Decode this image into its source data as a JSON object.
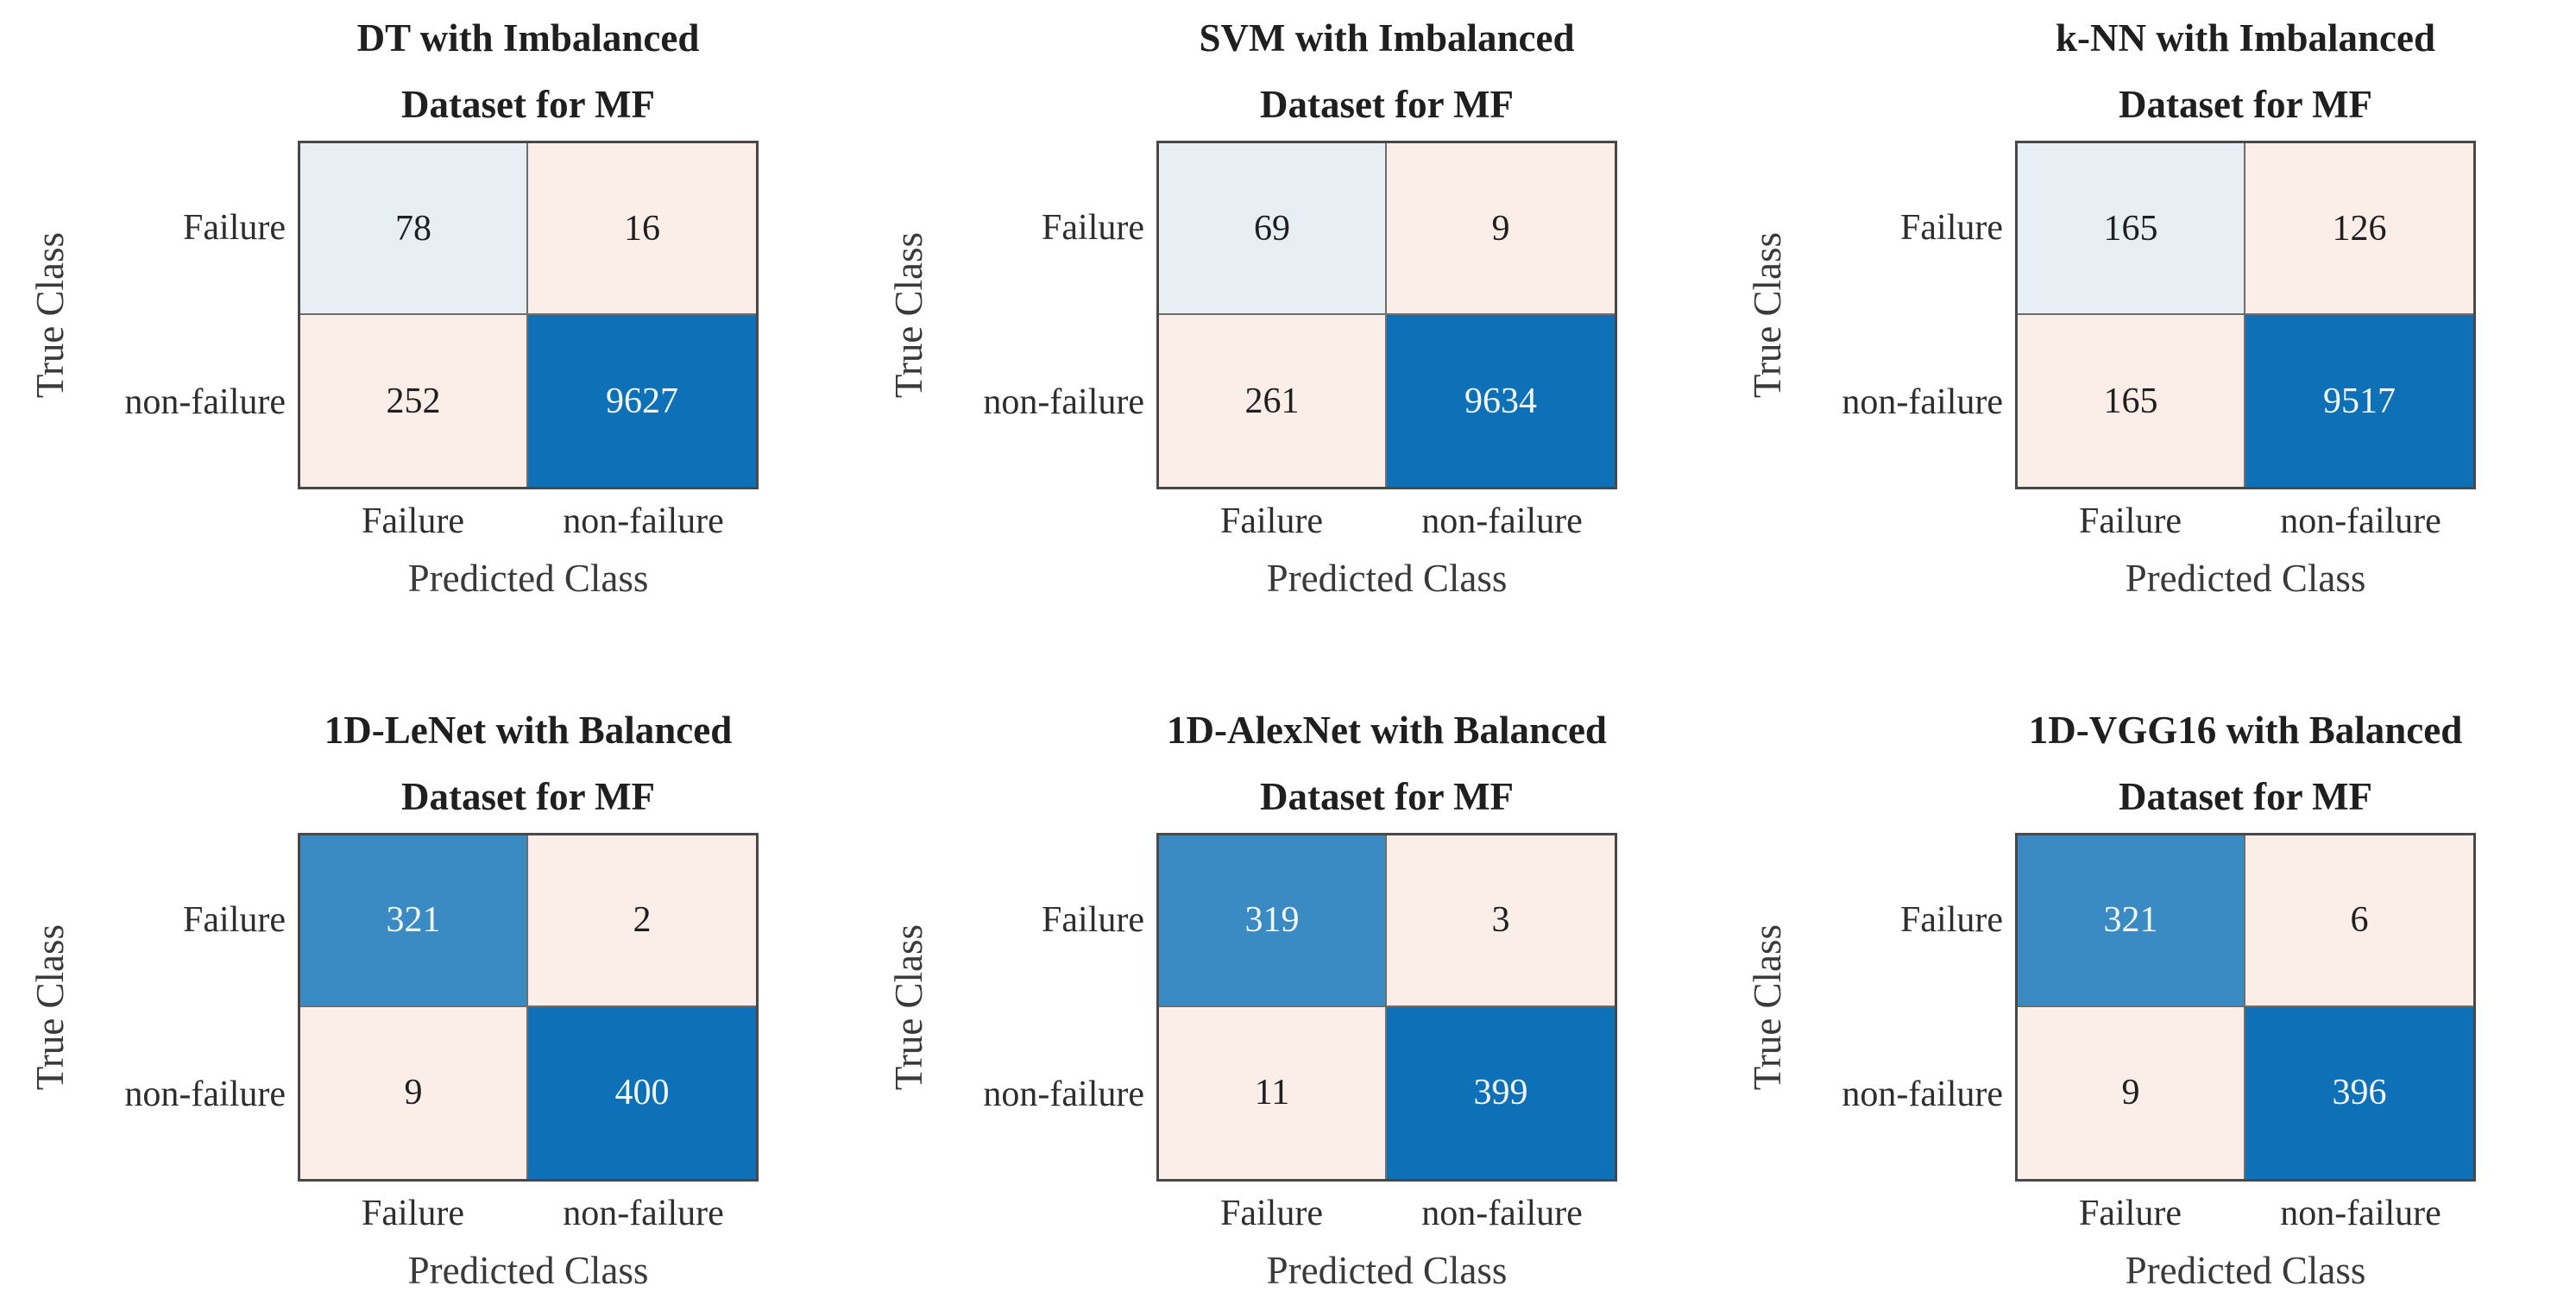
{
  "colors": {
    "cell_light_blue": "#e7eff5",
    "cell_cream": "#fbeee9",
    "cell_mid_blue": "#3a8ac4",
    "cell_dark_blue": "#0e71b8",
    "grid_line": "#6e6e6e",
    "matrix_border": "#484848",
    "text_dark": "#1f1f1f",
    "text_light": "#f2f6fa"
  },
  "chart_data": [
    {
      "type": "heatmap",
      "title": "DT with Imbalanced Dataset for MF",
      "title_lines": [
        "DT with Imbalanced",
        "Dataset for MF"
      ],
      "xlabel": "Predicted Class",
      "ylabel": "True Class",
      "x_categories": [
        "Failure",
        "non-failure"
      ],
      "y_categories": [
        "Failure",
        "non-failure"
      ],
      "values": [
        [
          78,
          16
        ],
        [
          252,
          9627
        ]
      ]
    },
    {
      "type": "heatmap",
      "title": "SVM with Imbalanced Dataset for MF",
      "title_lines": [
        "SVM with Imbalanced",
        "Dataset for MF"
      ],
      "xlabel": "Predicted Class",
      "ylabel": "True Class",
      "x_categories": [
        "Failure",
        "non-failure"
      ],
      "y_categories": [
        "Failure",
        "non-failure"
      ],
      "values": [
        [
          69,
          9
        ],
        [
          261,
          9634
        ]
      ]
    },
    {
      "type": "heatmap",
      "title": "k-NN with Imbalanced Dataset for MF",
      "title_lines": [
        "k-NN with Imbalanced",
        "Dataset for MF"
      ],
      "xlabel": "Predicted Class",
      "ylabel": "True Class",
      "x_categories": [
        "Failure",
        "non-failure"
      ],
      "y_categories": [
        "Failure",
        "non-failure"
      ],
      "values": [
        [
          165,
          126
        ],
        [
          165,
          9517
        ]
      ]
    },
    {
      "type": "heatmap",
      "title": "1D-LeNet with Balanced Dataset for MF",
      "title_lines": [
        "1D-LeNet with Balanced",
        "Dataset for MF"
      ],
      "xlabel": "Predicted Class",
      "ylabel": "True Class",
      "x_categories": [
        "Failure",
        "non-failure"
      ],
      "y_categories": [
        "Failure",
        "non-failure"
      ],
      "values": [
        [
          321,
          2
        ],
        [
          9,
          400
        ]
      ]
    },
    {
      "type": "heatmap",
      "title": "1D-AlexNet with Balanced Dataset for MF",
      "title_lines": [
        "1D-AlexNet with Balanced",
        "Dataset for MF"
      ],
      "xlabel": "Predicted Class",
      "ylabel": "True Class",
      "x_categories": [
        "Failure",
        "non-failure"
      ],
      "y_categories": [
        "Failure",
        "non-failure"
      ],
      "values": [
        [
          319,
          3
        ],
        [
          11,
          399
        ]
      ]
    },
    {
      "type": "heatmap",
      "title": "1D-VGG16 with Balanced Dataset for MF",
      "title_lines": [
        "1D-VGG16 with Balanced",
        "Dataset for MF"
      ],
      "xlabel": "Predicted Class",
      "ylabel": "True Class",
      "x_categories": [
        "Failure",
        "non-failure"
      ],
      "y_categories": [
        "Failure",
        "non-failure"
      ],
      "values": [
        [
          321,
          6
        ],
        [
          9,
          396
        ]
      ]
    }
  ]
}
